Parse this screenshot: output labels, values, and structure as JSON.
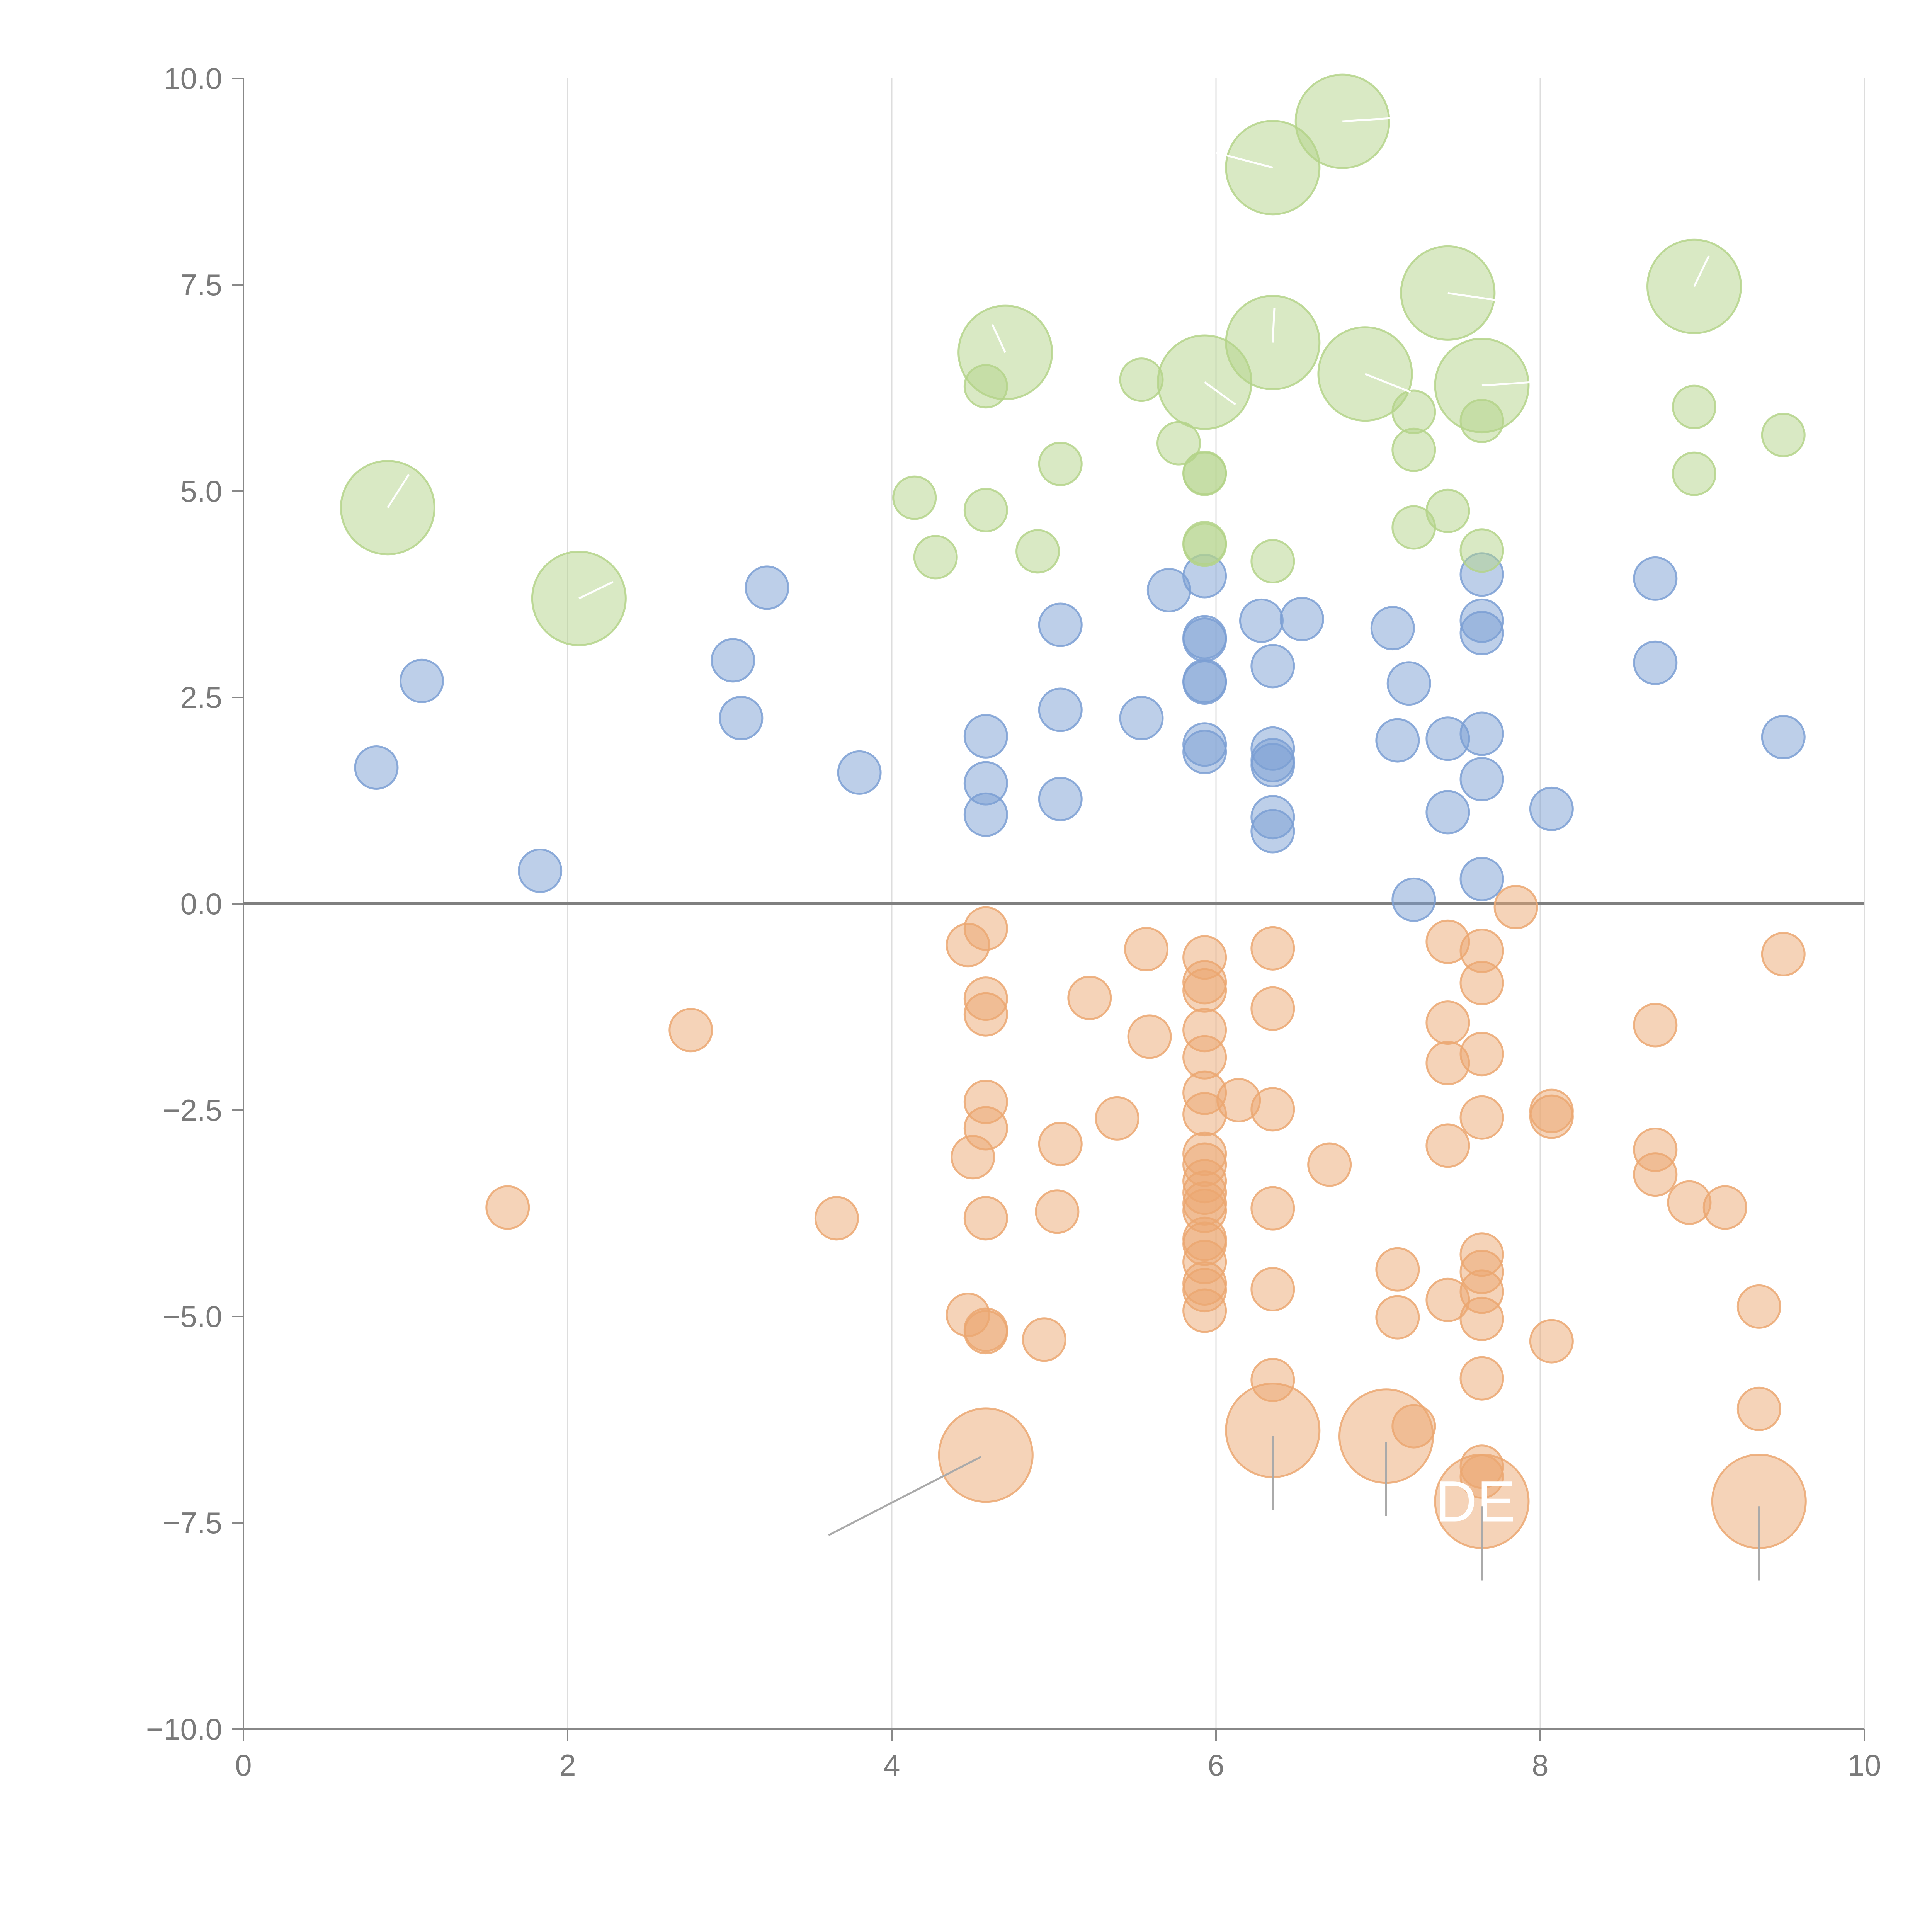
{
  "chart_data": {
    "type": "scatter",
    "title": "",
    "xlabel": "",
    "ylabel": "",
    "xlim": [
      0,
      10
    ],
    "ylim": [
      -10,
      10
    ],
    "x_ticks": [
      0,
      2,
      4,
      6,
      8,
      10
    ],
    "x_tick_labels": [
      "0",
      "2",
      "4",
      "6",
      "8",
      "10"
    ],
    "y_ticks": [
      10,
      7.5,
      5,
      2.5,
      0,
      -2.5,
      -5,
      -7.5,
      -10
    ],
    "y_tick_labels": [
      "10.0",
      "7.5",
      "5.0",
      "2.5",
      "0.0",
      "−2.5",
      "−5.0",
      "−7.5",
      "−10.0"
    ],
    "x_grid": true,
    "zero_line_y": 0,
    "colors": {
      "blue": "#7b9fd4",
      "green": "#b4d38a",
      "orange": "#eba771",
      "grid": "#dddddd",
      "axis": "#888888",
      "zero_line": "#7f7f7f",
      "leader": "#aaaaaa"
    },
    "marker_sizes": {
      "small": 1,
      "large": 2.2
    },
    "series": [
      {
        "name": "blue",
        "color": "#7b9fd4",
        "points": [
          {
            "x": 0.82,
            "y": 1.65
          },
          {
            "x": 1.1,
            "y": 2.7
          },
          {
            "x": 1.83,
            "y": 0.4
          },
          {
            "x": 3.02,
            "y": 2.95
          },
          {
            "x": 3.07,
            "y": 2.25
          },
          {
            "x": 3.23,
            "y": 3.83
          },
          {
            "x": 3.8,
            "y": 1.59
          },
          {
            "x": 4.58,
            "y": 2.03
          },
          {
            "x": 4.58,
            "y": 1.46
          },
          {
            "x": 4.58,
            "y": 1.08
          },
          {
            "x": 5.04,
            "y": 3.38
          },
          {
            "x": 5.04,
            "y": 2.35
          },
          {
            "x": 5.04,
            "y": 1.27
          },
          {
            "x": 5.54,
            "y": 2.25
          },
          {
            "x": 5.71,
            "y": 3.8
          },
          {
            "x": 5.93,
            "y": 3.97
          },
          {
            "x": 5.93,
            "y": 3.23
          },
          {
            "x": 5.93,
            "y": 3.2
          },
          {
            "x": 5.93,
            "y": 2.7
          },
          {
            "x": 5.93,
            "y": 2.68
          },
          {
            "x": 5.93,
            "y": 1.93
          },
          {
            "x": 5.93,
            "y": 1.84
          },
          {
            "x": 6.28,
            "y": 3.43
          },
          {
            "x": 6.35,
            "y": 2.88
          },
          {
            "x": 6.35,
            "y": 1.88
          },
          {
            "x": 6.35,
            "y": 1.74
          },
          {
            "x": 6.35,
            "y": 1.68
          },
          {
            "x": 6.35,
            "y": 1.05
          },
          {
            "x": 6.35,
            "y": 0.88
          },
          {
            "x": 6.53,
            "y": 3.45
          },
          {
            "x": 7.09,
            "y": 3.34
          },
          {
            "x": 7.12,
            "y": 1.98
          },
          {
            "x": 7.19,
            "y": 2.67
          },
          {
            "x": 7.22,
            "y": 0.05
          },
          {
            "x": 7.43,
            "y": 2.0
          },
          {
            "x": 7.43,
            "y": 1.11
          },
          {
            "x": 7.64,
            "y": 3.99
          },
          {
            "x": 7.64,
            "y": 3.43
          },
          {
            "x": 7.64,
            "y": 3.28
          },
          {
            "x": 7.64,
            "y": 2.06
          },
          {
            "x": 7.64,
            "y": 1.51
          },
          {
            "x": 7.64,
            "y": 0.3
          },
          {
            "x": 8.07,
            "y": 1.15
          },
          {
            "x": 8.71,
            "y": 3.94
          },
          {
            "x": 8.71,
            "y": 2.92
          },
          {
            "x": 9.5,
            "y": 2.02
          }
        ]
      },
      {
        "name": "green",
        "color": "#b4d38a",
        "points": [
          {
            "x": 0.89,
            "y": 4.8,
            "size": "large"
          },
          {
            "x": 2.07,
            "y": 3.7,
            "size": "large"
          },
          {
            "x": 4.14,
            "y": 4.92
          },
          {
            "x": 4.27,
            "y": 4.2
          },
          {
            "x": 4.58,
            "y": 6.27
          },
          {
            "x": 4.58,
            "y": 4.77
          },
          {
            "x": 4.7,
            "y": 6.68,
            "size": "large"
          },
          {
            "x": 4.9,
            "y": 4.27
          },
          {
            "x": 5.04,
            "y": 5.33
          },
          {
            "x": 5.54,
            "y": 6.35
          },
          {
            "x": 5.77,
            "y": 5.58
          },
          {
            "x": 5.93,
            "y": 6.32,
            "size": "large"
          },
          {
            "x": 5.93,
            "y": 5.22
          },
          {
            "x": 5.93,
            "y": 5.21
          },
          {
            "x": 5.93,
            "y": 4.37
          },
          {
            "x": 5.93,
            "y": 4.35
          },
          {
            "x": 6.35,
            "y": 8.92,
            "size": "large"
          },
          {
            "x": 6.35,
            "y": 6.8,
            "size": "large"
          },
          {
            "x": 6.35,
            "y": 4.15
          },
          {
            "x": 6.78,
            "y": 9.48,
            "size": "large"
          },
          {
            "x": 6.92,
            "y": 6.42,
            "size": "large"
          },
          {
            "x": 7.22,
            "y": 5.96
          },
          {
            "x": 7.22,
            "y": 5.5
          },
          {
            "x": 7.22,
            "y": 4.56
          },
          {
            "x": 7.43,
            "y": 7.4,
            "size": "large"
          },
          {
            "x": 7.43,
            "y": 4.76
          },
          {
            "x": 7.64,
            "y": 6.28,
            "size": "large"
          },
          {
            "x": 7.64,
            "y": 5.85
          },
          {
            "x": 7.64,
            "y": 4.28
          },
          {
            "x": 8.95,
            "y": 7.48,
            "size": "large"
          },
          {
            "x": 8.95,
            "y": 6.02
          },
          {
            "x": 8.95,
            "y": 5.21
          },
          {
            "x": 9.5,
            "y": 5.68
          }
        ]
      },
      {
        "name": "orange",
        "color": "#eba771",
        "points": [
          {
            "x": 1.63,
            "y": -3.68
          },
          {
            "x": 2.76,
            "y": -1.53
          },
          {
            "x": 3.66,
            "y": -3.81
          },
          {
            "x": 4.47,
            "y": -4.98
          },
          {
            "x": 4.47,
            "y": -0.5
          },
          {
            "x": 4.5,
            "y": -3.07
          },
          {
            "x": 4.58,
            "y": -0.3
          },
          {
            "x": 4.58,
            "y": -1.15
          },
          {
            "x": 4.58,
            "y": -1.34
          },
          {
            "x": 4.58,
            "y": -2.4
          },
          {
            "x": 4.58,
            "y": -2.72
          },
          {
            "x": 4.58,
            "y": -3.81
          },
          {
            "x": 4.58,
            "y": -5.16
          },
          {
            "x": 4.58,
            "y": -5.19
          },
          {
            "x": 4.58,
            "y": -6.68,
            "size": "large"
          },
          {
            "x": 4.94,
            "y": -5.28
          },
          {
            "x": 5.02,
            "y": -3.73
          },
          {
            "x": 5.04,
            "y": -2.91
          },
          {
            "x": 5.22,
            "y": -1.14
          },
          {
            "x": 5.39,
            "y": -2.6
          },
          {
            "x": 5.57,
            "y": -0.55
          },
          {
            "x": 5.59,
            "y": -1.61
          },
          {
            "x": 5.93,
            "y": -0.65
          },
          {
            "x": 5.93,
            "y": -0.95
          },
          {
            "x": 5.93,
            "y": -1.05
          },
          {
            "x": 5.93,
            "y": -1.53
          },
          {
            "x": 5.93,
            "y": -1.86
          },
          {
            "x": 5.93,
            "y": -2.29
          },
          {
            "x": 5.93,
            "y": -2.55
          },
          {
            "x": 5.93,
            "y": -3.03
          },
          {
            "x": 5.93,
            "y": -3.16
          },
          {
            "x": 5.93,
            "y": -3.36
          },
          {
            "x": 5.93,
            "y": -3.5
          },
          {
            "x": 5.93,
            "y": -3.63
          },
          {
            "x": 5.93,
            "y": -3.72
          },
          {
            "x": 5.93,
            "y": -4.06
          },
          {
            "x": 5.93,
            "y": -4.12
          },
          {
            "x": 5.93,
            "y": -4.34
          },
          {
            "x": 5.93,
            "y": -4.6
          },
          {
            "x": 5.93,
            "y": -4.68
          },
          {
            "x": 5.93,
            "y": -4.93
          },
          {
            "x": 6.14,
            "y": -2.38
          },
          {
            "x": 6.35,
            "y": -0.54
          },
          {
            "x": 6.35,
            "y": -1.27
          },
          {
            "x": 6.35,
            "y": -2.49
          },
          {
            "x": 6.35,
            "y": -3.69
          },
          {
            "x": 6.35,
            "y": -4.67
          },
          {
            "x": 6.35,
            "y": -5.77
          },
          {
            "x": 6.35,
            "y": -6.38,
            "size": "large"
          },
          {
            "x": 6.7,
            "y": -3.16
          },
          {
            "x": 7.05,
            "y": -6.45,
            "size": "large"
          },
          {
            "x": 7.12,
            "y": -4.43
          },
          {
            "x": 7.12,
            "y": -5.01
          },
          {
            "x": 7.22,
            "y": -6.33
          },
          {
            "x": 7.43,
            "y": -0.46
          },
          {
            "x": 7.43,
            "y": -1.44
          },
          {
            "x": 7.43,
            "y": -1.93
          },
          {
            "x": 7.43,
            "y": -2.93
          },
          {
            "x": 7.43,
            "y": -4.8
          },
          {
            "x": 7.64,
            "y": -0.57
          },
          {
            "x": 7.64,
            "y": -0.96
          },
          {
            "x": 7.64,
            "y": -1.82
          },
          {
            "x": 7.64,
            "y": -2.59
          },
          {
            "x": 7.64,
            "y": -4.25
          },
          {
            "x": 7.64,
            "y": -4.46
          },
          {
            "x": 7.64,
            "y": -4.7
          },
          {
            "x": 7.64,
            "y": -5.03
          },
          {
            "x": 7.64,
            "y": -5.75
          },
          {
            "x": 7.64,
            "y": -6.82
          },
          {
            "x": 7.64,
            "y": -6.94
          },
          {
            "x": 7.64,
            "y": -7.24,
            "size": "large"
          },
          {
            "x": 7.85,
            "y": -0.04
          },
          {
            "x": 8.07,
            "y": -2.51
          },
          {
            "x": 8.07,
            "y": -2.58
          },
          {
            "x": 8.07,
            "y": -5.3
          },
          {
            "x": 8.71,
            "y": -1.47
          },
          {
            "x": 8.71,
            "y": -2.98
          },
          {
            "x": 8.71,
            "y": -3.28
          },
          {
            "x": 8.92,
            "y": -3.62
          },
          {
            "x": 9.14,
            "y": -3.68
          },
          {
            "x": 9.35,
            "y": -4.88
          },
          {
            "x": 9.35,
            "y": -6.12
          },
          {
            "x": 9.35,
            "y": -7.24,
            "size": "large"
          },
          {
            "x": 9.5,
            "y": -0.61
          }
        ]
      }
    ],
    "annotations": [
      {
        "text": "DE",
        "x": 7.6,
        "y": -7.24,
        "color": "#ffffff"
      }
    ],
    "leader_lines": [
      {
        "x1": 4.55,
        "y1": -6.7,
        "x2": 3.61,
        "y2": -7.65,
        "color": "#aaaaaa"
      },
      {
        "x1": 6.35,
        "y1": -6.45,
        "x2": 6.35,
        "y2": -7.35,
        "color": "#aaaaaa"
      },
      {
        "x1": 7.05,
        "y1": -6.52,
        "x2": 7.05,
        "y2": -7.42,
        "color": "#aaaaaa"
      },
      {
        "x1": 7.64,
        "y1": -7.3,
        "x2": 7.64,
        "y2": -8.2,
        "color": "#aaaaaa"
      },
      {
        "x1": 9.35,
        "y1": -7.3,
        "x2": 9.35,
        "y2": -8.2,
        "color": "#aaaaaa"
      },
      {
        "x1": 0.89,
        "y1": 4.8,
        "x2": 1.02,
        "y2": 5.2,
        "color": "#ffffff"
      },
      {
        "x1": 2.07,
        "y1": 3.7,
        "x2": 2.28,
        "y2": 3.9,
        "color": "#ffffff"
      },
      {
        "x1": 4.7,
        "y1": 6.68,
        "x2": 4.62,
        "y2": 7.02,
        "color": "#ffffff"
      },
      {
        "x1": 5.93,
        "y1": 6.32,
        "x2": 6.12,
        "y2": 6.05,
        "color": "#ffffff"
      },
      {
        "x1": 6.35,
        "y1": 8.92,
        "x2": 6.0,
        "y2": 9.1,
        "color": "#ffffff"
      },
      {
        "x1": 6.35,
        "y1": 6.8,
        "x2": 6.36,
        "y2": 7.22,
        "color": "#ffffff"
      },
      {
        "x1": 6.78,
        "y1": 9.48,
        "x2": 7.1,
        "y2": 9.52,
        "color": "#ffffff"
      },
      {
        "x1": 6.92,
        "y1": 6.42,
        "x2": 7.2,
        "y2": 6.2,
        "color": "#ffffff"
      },
      {
        "x1": 7.43,
        "y1": 7.4,
        "x2": 7.78,
        "y2": 7.3,
        "color": "#ffffff"
      },
      {
        "x1": 7.64,
        "y1": 6.28,
        "x2": 7.95,
        "y2": 6.32,
        "color": "#ffffff"
      },
      {
        "x1": 8.95,
        "y1": 7.48,
        "x2": 9.04,
        "y2": 7.85,
        "color": "#ffffff"
      }
    ]
  }
}
